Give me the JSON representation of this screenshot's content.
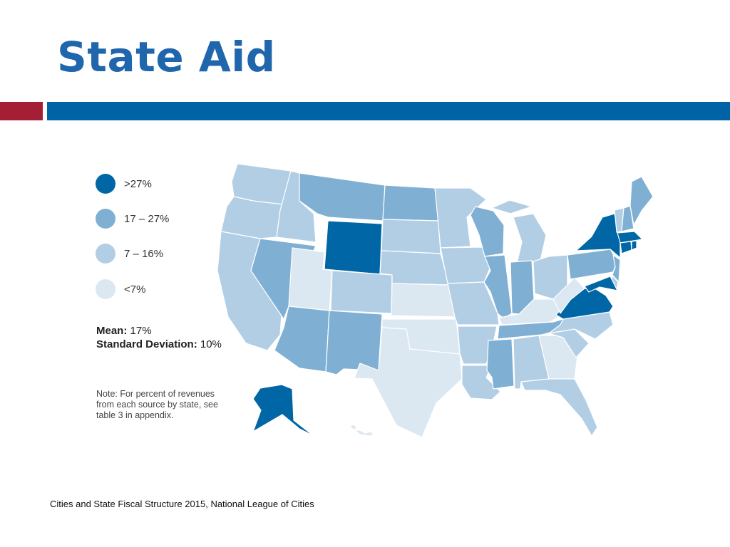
{
  "title": "State Aid",
  "legend": {
    "items": [
      {
        "label": ">27%",
        "color": "#0066a6"
      },
      {
        "label": "17 – 27%",
        "color": "#7fb0d3"
      },
      {
        "label": "7 – 16%",
        "color": "#b2cee4"
      },
      {
        "label": "<7%",
        "color": "#dbe7f1"
      }
    ]
  },
  "stats": {
    "mean_label": "Mean:",
    "mean_value": "17%",
    "sd_label": "Standard Deviation:",
    "sd_value": "10%"
  },
  "note": "Note: For percent of revenues from each source by state, see table 3 in appendix.",
  "source": "Cities and State Fiscal Structure 2015, National League of Cities",
  "map_data": {
    "type": "choropleth",
    "states": {
      "WY": 0,
      "NY": 0,
      "VA": 0,
      "MD": 0,
      "MA": 0,
      "CT": 0,
      "RI": 0,
      "AK": 0,
      "MT": 1,
      "ND": 1,
      "NV": 1,
      "AZ": 1,
      "NM": 1,
      "WI": 1,
      "IL": 1,
      "IN": 1,
      "MS": 1,
      "TN": 1,
      "PA": 1,
      "NJ": 1,
      "ME": 1,
      "NH": 1,
      "WA": 2,
      "OR": 2,
      "ID": 2,
      "CA": 2,
      "SD": 2,
      "NE": 2,
      "CO": 2,
      "MN": 2,
      "IA": 2,
      "MO": 2,
      "AR": 2,
      "LA": 2,
      "AL": 2,
      "SC": 2,
      "NC": 2,
      "MI": 2,
      "OH": 2,
      "FL": 2,
      "VT": 2,
      "DE": 2,
      "UT": 3,
      "KS": 3,
      "OK": 3,
      "TX": 3,
      "GA": 3,
      "WV": 3,
      "KY": 3,
      "HI": 3
    }
  }
}
